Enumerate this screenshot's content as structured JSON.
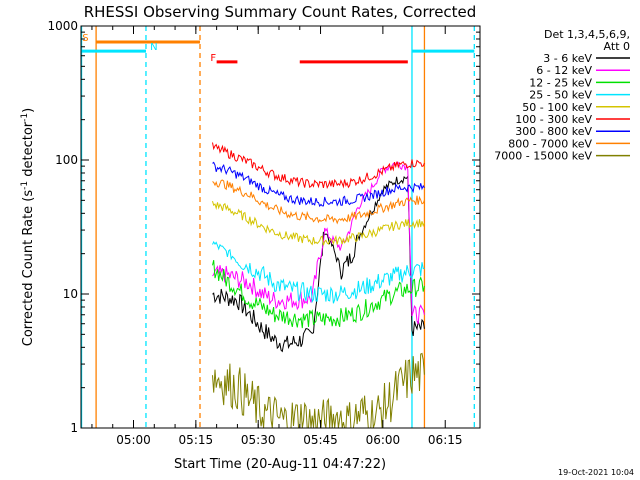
{
  "chart_data": {
    "type": "line",
    "title": "RHESSI Observing Summary Count Rates, Corrected",
    "xlabel": "Start Time (20-Aug-11 04:47:22)",
    "ylabel": "Corrected Count Rate (s⁻¹ detector⁻¹)",
    "y_scale": "log",
    "ylim": [
      1,
      1000
    ],
    "y_ticks": [
      {
        "value": 1,
        "label": "1"
      },
      {
        "value": 10,
        "label": "10"
      },
      {
        "value": 100,
        "label": "100"
      },
      {
        "value": 1000,
        "label": "1000"
      }
    ],
    "xlim": [
      "04:47:22",
      "06:23:22"
    ],
    "x_ticks": [
      "05:00",
      "05:15",
      "05:30",
      "05:45",
      "06:00",
      "06:15"
    ],
    "legend": {
      "position": "right",
      "header": [
        "Det 1,3,4,5,6,9,",
        "Att 0"
      ],
      "entries": [
        {
          "label": "3 - 6 keV",
          "color": "#000000"
        },
        {
          "label": "6 - 12 keV",
          "color": "#ff00ff"
        },
        {
          "label": "12 - 25 keV",
          "color": "#00e000"
        },
        {
          "label": "25 - 50 keV",
          "color": "#00e5ff"
        },
        {
          "label": "50 - 100 keV",
          "color": "#d4c400"
        },
        {
          "label": "100 - 300 keV",
          "color": "#ff0000"
        },
        {
          "label": "300 - 800 keV",
          "color": "#0000ff"
        },
        {
          "label": "800 - 7000 keV",
          "color": "#ff8000"
        },
        {
          "label": "7000 - 15000 keV",
          "color": "#808000"
        }
      ]
    },
    "series": [
      {
        "name": "3 - 6 keV",
        "color": "#000000",
        "x": [
          "05:19",
          "05:22",
          "05:25",
          "05:28",
          "05:31",
          "05:34",
          "05:37",
          "05:40",
          "05:43",
          "05:46",
          "05:48",
          "05:50",
          "05:52",
          "05:54",
          "05:57",
          "06:00",
          "06:03",
          "06:06",
          "06:07",
          "06:10"
        ],
        "y": [
          10,
          9.5,
          9,
          7,
          5.5,
          4.5,
          4.2,
          4.5,
          5,
          30,
          22,
          15,
          18,
          26,
          40,
          60,
          70,
          75,
          5.5,
          5.5
        ]
      },
      {
        "name": "6 - 12 keV",
        "color": "#ff00ff",
        "x": [
          "05:19",
          "05:22",
          "05:25",
          "05:28",
          "05:31",
          "05:34",
          "05:37",
          "05:40",
          "05:43",
          "05:46",
          "05:48",
          "05:50",
          "05:52",
          "05:54",
          "05:57",
          "06:00",
          "06:03",
          "06:06",
          "06:07",
          "06:10"
        ],
        "y": [
          14,
          14,
          13,
          12,
          10,
          9,
          9,
          9,
          9.5,
          30,
          25,
          22,
          30,
          45,
          60,
          85,
          95,
          90,
          7,
          7
        ]
      },
      {
        "name": "12 - 25 keV",
        "color": "#00e000",
        "x": [
          "05:19",
          "05:22",
          "05:25",
          "05:28",
          "05:31",
          "05:34",
          "05:37",
          "05:40",
          "05:43",
          "05:46",
          "05:49",
          "05:52",
          "05:55",
          "05:58",
          "06:01",
          "06:04",
          "06:07",
          "06:10"
        ],
        "y": [
          16,
          13,
          11,
          9,
          8,
          7,
          6.8,
          6.5,
          6.5,
          6.5,
          6.6,
          7,
          7.5,
          8.5,
          9.5,
          10.5,
          11,
          11.5
        ]
      },
      {
        "name": "25 - 50 keV",
        "color": "#00e5ff",
        "x": [
          "05:19",
          "05:22",
          "05:25",
          "05:28",
          "05:31",
          "05:34",
          "05:37",
          "05:40",
          "05:43",
          "05:46",
          "05:49",
          "05:52",
          "05:55",
          "05:58",
          "06:01",
          "06:04",
          "06:07",
          "06:10"
        ],
        "y": [
          24,
          21,
          18,
          16,
          14,
          12,
          11,
          10.5,
          10,
          10,
          10,
          10.5,
          11,
          12,
          13,
          14,
          15,
          15.5
        ]
      },
      {
        "name": "50 - 100 keV",
        "color": "#d4c400",
        "x": [
          "05:19",
          "05:22",
          "05:25",
          "05:28",
          "05:31",
          "05:34",
          "05:37",
          "05:40",
          "05:43",
          "05:46",
          "05:49",
          "05:52",
          "05:55",
          "05:58",
          "06:01",
          "06:04",
          "06:07",
          "06:10"
        ],
        "y": [
          47,
          44,
          40,
          36,
          32,
          29,
          27,
          26,
          25,
          25,
          25,
          26,
          27,
          29,
          31,
          33,
          34,
          34
        ]
      },
      {
        "name": "100 - 300 keV",
        "color": "#ff0000",
        "x": [
          "05:19",
          "05:22",
          "05:25",
          "05:28",
          "05:31",
          "05:34",
          "05:37",
          "05:40",
          "05:43",
          "05:46",
          "05:49",
          "05:52",
          "05:55",
          "05:58",
          "06:01",
          "06:04",
          "06:07",
          "06:10"
        ],
        "y": [
          125,
          115,
          105,
          95,
          85,
          77,
          72,
          68,
          66,
          66,
          66,
          68,
          72,
          78,
          85,
          92,
          95,
          95
        ]
      },
      {
        "name": "300 - 800 keV",
        "color": "#0000ff",
        "x": [
          "05:19",
          "05:22",
          "05:25",
          "05:28",
          "05:31",
          "05:34",
          "05:37",
          "05:40",
          "05:43",
          "05:46",
          "05:49",
          "05:52",
          "05:55",
          "05:58",
          "06:01",
          "06:04",
          "06:07",
          "06:10"
        ],
        "y": [
          90,
          85,
          78,
          70,
          62,
          56,
          52,
          50,
          49,
          49,
          49,
          50,
          52,
          55,
          59,
          62,
          63,
          62
        ]
      },
      {
        "name": "800 - 7000 keV",
        "color": "#ff8000",
        "x": [
          "05:19",
          "05:22",
          "05:25",
          "05:28",
          "05:31",
          "05:34",
          "05:37",
          "05:40",
          "05:43",
          "05:46",
          "05:49",
          "05:52",
          "05:55",
          "05:58",
          "06:01",
          "06:04",
          "06:07",
          "06:10"
        ],
        "y": [
          70,
          66,
          60,
          55,
          48,
          43,
          40,
          38,
          37,
          36,
          36,
          37,
          39,
          42,
          45,
          48,
          50,
          50
        ]
      },
      {
        "name": "7000 - 15000 keV",
        "color": "#808000",
        "x": [
          "05:19",
          "05:22",
          "05:25",
          "05:28",
          "05:31",
          "05:34",
          "05:37",
          "05:40",
          "05:43",
          "05:46",
          "05:49",
          "05:52",
          "05:55",
          "05:58",
          "06:01",
          "06:04",
          "06:07",
          "06:10"
        ],
        "y": [
          2.5,
          2.2,
          2,
          1.6,
          1.3,
          1.2,
          1.1,
          1.2,
          1.1,
          1.1,
          1.2,
          1.1,
          1.3,
          1.2,
          1.5,
          2,
          2.5,
          2.5
        ]
      }
    ],
    "time_markers": [
      {
        "time": "04:51:00",
        "color": "#ff8000",
        "style": "solid"
      },
      {
        "time": "05:16:00",
        "color": "#ff8000",
        "style": "dashed"
      },
      {
        "time": "06:10:00",
        "color": "#ff8000",
        "style": "solid"
      },
      {
        "time": "04:47:30",
        "color": "#00e5ff",
        "style": "solid"
      },
      {
        "time": "05:03:00",
        "color": "#00e5ff",
        "style": "dashed"
      },
      {
        "time": "06:07:00",
        "color": "#00e5ff",
        "style": "solid"
      },
      {
        "time": "06:22:00",
        "color": "#00e5ff",
        "style": "dashed"
      }
    ],
    "flag_bars": [
      {
        "start": "04:51:00",
        "end": "05:16:00",
        "y": 760,
        "color": "#ff8000"
      },
      {
        "start": "04:47:22",
        "end": "05:03:00",
        "y": 650,
        "color": "#00e5ff"
      },
      {
        "start": "06:07:00",
        "end": "06:22:00",
        "y": 650,
        "color": "#00e5ff"
      },
      {
        "start": "05:20:00",
        "end": "05:25:00",
        "y": 540,
        "color": "#ff0000"
      },
      {
        "start": "05:40:00",
        "end": "06:06:00",
        "y": 540,
        "color": "#ff0000"
      }
    ],
    "flag_labels": [
      {
        "text": "S",
        "time": "04:47:40",
        "y": 770,
        "color": "#ff8000"
      },
      {
        "text": "N",
        "time": "05:04:00",
        "y": 660,
        "color": "#00e5ff"
      },
      {
        "text": "F",
        "time": "05:18:30",
        "y": 550,
        "color": "#ff0000"
      }
    ],
    "grid": false
  },
  "footer_timestamp": "19-Oct-2021 10:04"
}
